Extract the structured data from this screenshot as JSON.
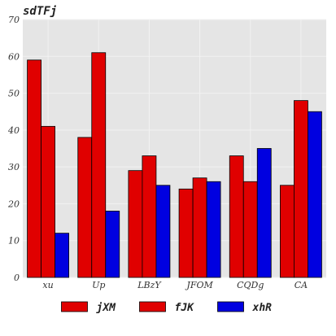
{
  "chart_data": {
    "type": "bar",
    "title": "sdTFj",
    "xlabel": "",
    "ylabel": "",
    "categories": [
      "xu",
      "Up",
      "LBzY",
      "JFOM",
      "CQDg",
      "CA"
    ],
    "series": [
      {
        "name": "jXM",
        "color": "#e00000",
        "values": [
          59,
          38,
          29,
          24,
          33,
          25
        ]
      },
      {
        "name": "fJK",
        "color": "#e00000",
        "values": [
          41,
          61,
          33,
          27,
          26,
          48
        ]
      },
      {
        "name": "xhR",
        "color": "#0000e0",
        "values": [
          12,
          18,
          25,
          26,
          35,
          45
        ]
      }
    ],
    "ylim": [
      0,
      70
    ],
    "yticks": [
      0,
      10,
      20,
      30,
      40,
      50,
      60,
      70
    ],
    "grid": true,
    "legend_position": "bottom-center",
    "background_color": "#e5e5e5",
    "grid_color": "#f2f2f2"
  }
}
